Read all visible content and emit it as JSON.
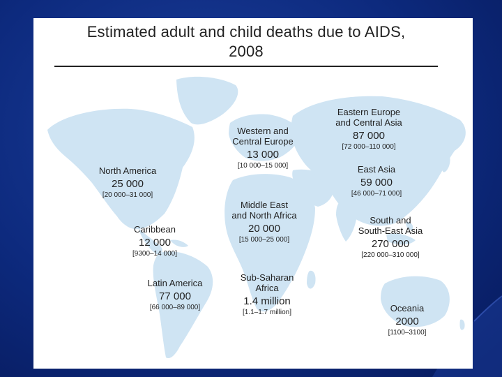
{
  "slide": {
    "title_line1": "Estimated adult and child deaths due to AIDS,",
    "title_line2": "2008"
  },
  "colors": {
    "background": "#0d2a7e",
    "panel": "#ffffff",
    "land": "#cfe4f3",
    "text": "#222222"
  },
  "regions": [
    {
      "id": "north-america",
      "name": "North America",
      "value": "25 000",
      "range": "[20 000–31 000]"
    },
    {
      "id": "caribbean",
      "name": "Caribbean",
      "value": "12 000",
      "range": "[9300–14 000]"
    },
    {
      "id": "latin-america",
      "name": "Latin America",
      "value": "77 000",
      "range": "[66 000–89 000]"
    },
    {
      "id": "western-central-europe",
      "name_line1": "Western and",
      "name_line2": "Central Europe",
      "value": "13 000",
      "range": "[10 000–15 000]"
    },
    {
      "id": "middle-east-north-africa",
      "name_line1": "Middle East",
      "name_line2": "and North Africa",
      "value": "20 000",
      "range": "[15 000–25 000]"
    },
    {
      "id": "sub-saharan-africa",
      "name_line1": "Sub-Saharan",
      "name_line2": "Africa",
      "value": "1.4 million",
      "range": "[1.1–1.7 million]"
    },
    {
      "id": "eastern-europe-central-asia",
      "name_line1": "Eastern Europe",
      "name_line2": "and Central Asia",
      "value": "87 000",
      "range": "[72 000–110 000]"
    },
    {
      "id": "east-asia",
      "name": "East Asia",
      "value": "59 000",
      "range": "[46 000–71 000]"
    },
    {
      "id": "south-southeast-asia",
      "name_line1": "South and",
      "name_line2": "South-East Asia",
      "value": "270 000",
      "range": "[220 000–310 000]"
    },
    {
      "id": "oceania",
      "name": "Oceania",
      "value": "2000",
      "range": "[1100–3100]"
    }
  ]
}
